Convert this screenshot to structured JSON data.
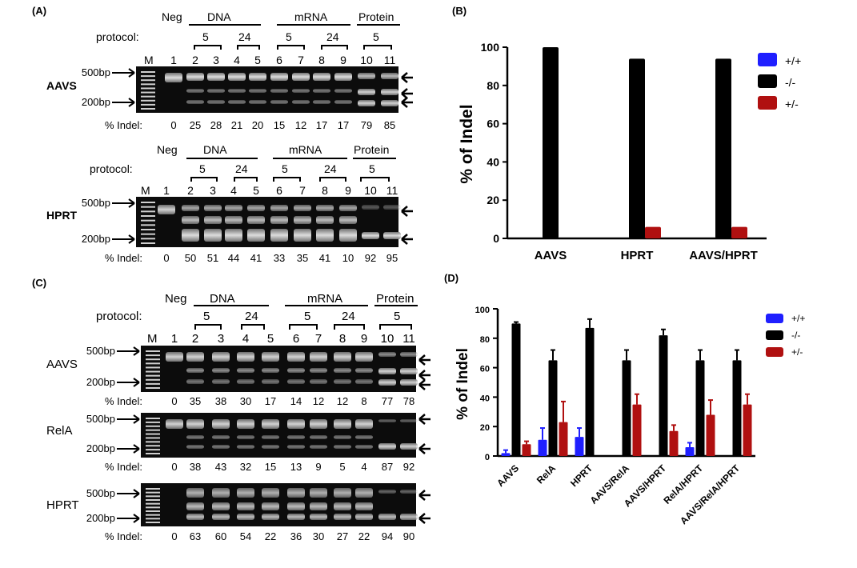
{
  "panels": {
    "A": {
      "label": "(A)",
      "groups": [
        {
          "name": "Neg",
          "protocol_label": ""
        },
        {
          "name": "DNA"
        },
        {
          "name": "mRNA"
        },
        {
          "name": "Protein"
        }
      ],
      "protocol_label": "protocol:",
      "timepoints": [
        "5",
        "24",
        "5",
        "24",
        "5"
      ],
      "marker_label": "M",
      "lanes": [
        "1",
        "2",
        "3",
        "4",
        "5",
        "6",
        "7",
        "8",
        "9",
        "10",
        "11"
      ],
      "size_markers": [
        "500bp",
        "200bp"
      ],
      "indel_label": "% Indel:",
      "gels": [
        {
          "name": "AAVS",
          "indel": [
            "0",
            "25",
            "28",
            "21",
            "20",
            "15",
            "12",
            "17",
            "17",
            "79",
            "85"
          ]
        },
        {
          "name": "HPRT",
          "indel": [
            "0",
            "50",
            "51",
            "44",
            "41",
            "33",
            "35",
            "41",
            "10",
            "92",
            "95"
          ]
        }
      ]
    },
    "C": {
      "label": "(C)",
      "groups": [
        {
          "name": "Neg"
        },
        {
          "name": "DNA"
        },
        {
          "name": "mRNA"
        },
        {
          "name": "Protein"
        }
      ],
      "protocol_label": "protocol:",
      "timepoints": [
        "5",
        "24",
        "5",
        "24",
        "5"
      ],
      "marker_label": "M",
      "lanes": [
        "1",
        "2",
        "3",
        "4",
        "5",
        "6",
        "7",
        "8",
        "9",
        "10",
        "11"
      ],
      "size_markers": [
        "500bp",
        "200bp"
      ],
      "indel_label": "% Indel:",
      "gels": [
        {
          "name": "AAVS",
          "indel": [
            "0",
            "35",
            "38",
            "30",
            "17",
            "14",
            "12",
            "12",
            "8",
            "77",
            "78"
          ]
        },
        {
          "name": "RelA",
          "indel": [
            "0",
            "38",
            "43",
            "32",
            "15",
            "13",
            "9",
            "5",
            "4",
            "87",
            "92"
          ]
        },
        {
          "name": "HPRT",
          "indel": [
            "0",
            "63",
            "60",
            "54",
            "22",
            "36",
            "30",
            "27",
            "22",
            "94",
            "90"
          ]
        }
      ]
    }
  },
  "chart_data": [
    {
      "panel_label": "(B)",
      "type": "bar",
      "categories": [
        "AAVS",
        "HPRT",
        "AAVS/HPRT"
      ],
      "series": [
        {
          "name": "+/+",
          "color": "#1f1fff",
          "values": [
            0,
            0,
            0
          ]
        },
        {
          "name": "-/-",
          "color": "#000000",
          "values": [
            100,
            94,
            94
          ]
        },
        {
          "name": "+/-",
          "color": "#b01010",
          "values": [
            0,
            6,
            6
          ]
        }
      ],
      "ylabel": "% of Indel",
      "ylim": [
        0,
        100
      ],
      "yticks": [
        "0",
        "20",
        "40",
        "60",
        "80",
        "100"
      ],
      "legend_position": "right"
    },
    {
      "panel_label": "(D)",
      "type": "bar",
      "categories": [
        "AAVS",
        "RelA",
        "HPRT",
        "AAVS/RelA",
        "AAVS/HPRT",
        "RelA/HPRT",
        "AAVS/RelA/HPRT"
      ],
      "series": [
        {
          "name": "+/+",
          "color": "#1f1fff",
          "values": [
            2,
            11,
            13,
            0,
            0,
            6,
            0
          ],
          "errors": [
            2,
            8,
            6,
            0,
            0,
            3,
            0
          ]
        },
        {
          "name": "-/-",
          "color": "#000000",
          "values": [
            90,
            65,
            87,
            65,
            82,
            65,
            65
          ],
          "errors": [
            1,
            7,
            6,
            7,
            4,
            7,
            7
          ]
        },
        {
          "name": "+/-",
          "color": "#b01010",
          "values": [
            8,
            23,
            0,
            35,
            17,
            28,
            35
          ],
          "errors": [
            2,
            14,
            0,
            7,
            4,
            10,
            7
          ]
        }
      ],
      "ylabel": "% of Indel",
      "ylim": [
        0,
        100
      ],
      "yticks": [
        "0",
        "20",
        "40",
        "60",
        "80",
        "100"
      ],
      "legend_position": "right"
    }
  ]
}
